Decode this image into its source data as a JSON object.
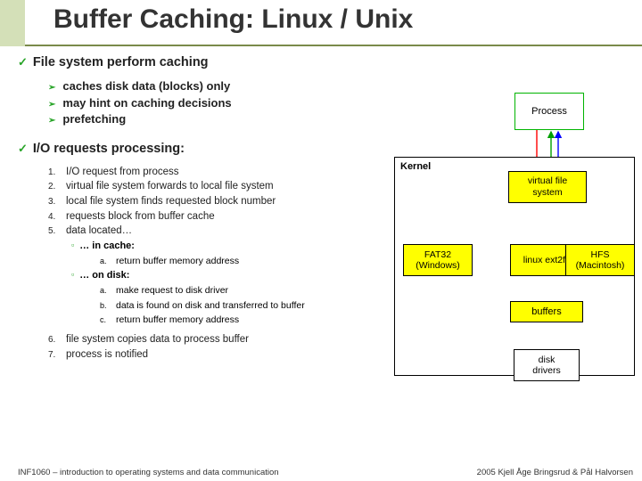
{
  "title": "Buffer Caching: Linux / Unix",
  "section1": {
    "heading": "File system perform caching",
    "items": [
      "caches disk data (blocks) only",
      "may hint on caching decisions",
      "prefetching"
    ]
  },
  "section2": {
    "heading": "I/O requests processing:",
    "steps": [
      "I/O request from process",
      "virtual file system forwards to local file system",
      "local file system finds requested block number",
      "requests block from buffer cache",
      "data located…"
    ],
    "cache_label": "… in cache:",
    "cache_items": [
      "return buffer memory address"
    ],
    "disk_label": "… on disk:",
    "disk_items": [
      "make request to disk driver",
      "data is found on disk and transferred to buffer",
      "return buffer memory address"
    ],
    "steps_tail": [
      "file system copies data to process buffer",
      "process is notified"
    ]
  },
  "diagram": {
    "process": "Process",
    "kernel": "Kernel",
    "vfs": "virtual file\nsystem",
    "fat": "FAT32\n(Windows)",
    "ext": "linux ext2fs",
    "hfs": "HFS\n(Macintosh)",
    "buffers": "buffers",
    "disk": "disk\ndrivers",
    "colors": {
      "process_border": "#00b400",
      "yellow": "#ffff00",
      "arrows": [
        "#ff0000",
        "#0000ff",
        "#00a000",
        "#000000"
      ]
    }
  },
  "footer": {
    "left": "INF1060 – introduction to operating systems and data communication",
    "right": "2005 Kjell Åge Bringsrud & Pål Halvorsen"
  }
}
